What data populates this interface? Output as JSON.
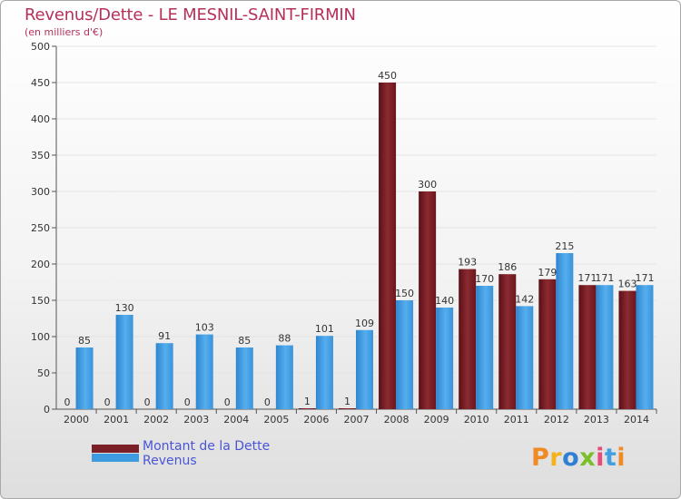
{
  "title": "Revenus/Dette - LE MESNIL-SAINT-FIRMIN",
  "subtitle": "(en milliers d'€)",
  "logo": "Proxiti",
  "colors": {
    "dette": "#7a1f25",
    "revenus": "#3e9be0",
    "axis": "#555555",
    "grid": "#e4e4e4",
    "title": "#b5315a",
    "legend_text": "#4a55d6"
  },
  "chart_data": {
    "type": "bar",
    "categories": [
      "2000",
      "2001",
      "2002",
      "2003",
      "2004",
      "2005",
      "2006",
      "2007",
      "2008",
      "2009",
      "2010",
      "2011",
      "2012",
      "2013",
      "2014"
    ],
    "series": [
      {
        "name": "Montant de la Dette",
        "values": [
          0,
          0,
          0,
          0,
          0,
          0,
          1,
          1,
          450,
          300,
          193,
          186,
          179,
          171,
          163
        ],
        "labels": [
          "0",
          "0",
          "0",
          "0",
          "0",
          "0",
          "1",
          "1",
          "450",
          "300",
          "193",
          "186",
          "179",
          "171",
          "163"
        ]
      },
      {
        "name": "Revenus",
        "values": [
          85,
          130,
          91,
          103,
          85,
          88,
          101,
          109,
          150,
          140,
          170,
          142,
          215,
          171,
          171
        ],
        "labels": [
          "85",
          "130",
          "91",
          "103",
          "85",
          "88",
          "101",
          "109",
          "150",
          "140",
          "170",
          "142",
          "215",
          "171",
          "171"
        ]
      }
    ],
    "ylim": [
      0,
      500
    ],
    "yticks": [
      0,
      50,
      100,
      150,
      200,
      250,
      300,
      350,
      400,
      450,
      500
    ],
    "ytick_labels": [
      "0",
      "50",
      "100",
      "150",
      "200",
      "250",
      "300",
      "350",
      "400",
      "450",
      "500"
    ],
    "grid": true,
    "legend_position": "bottom-left"
  }
}
